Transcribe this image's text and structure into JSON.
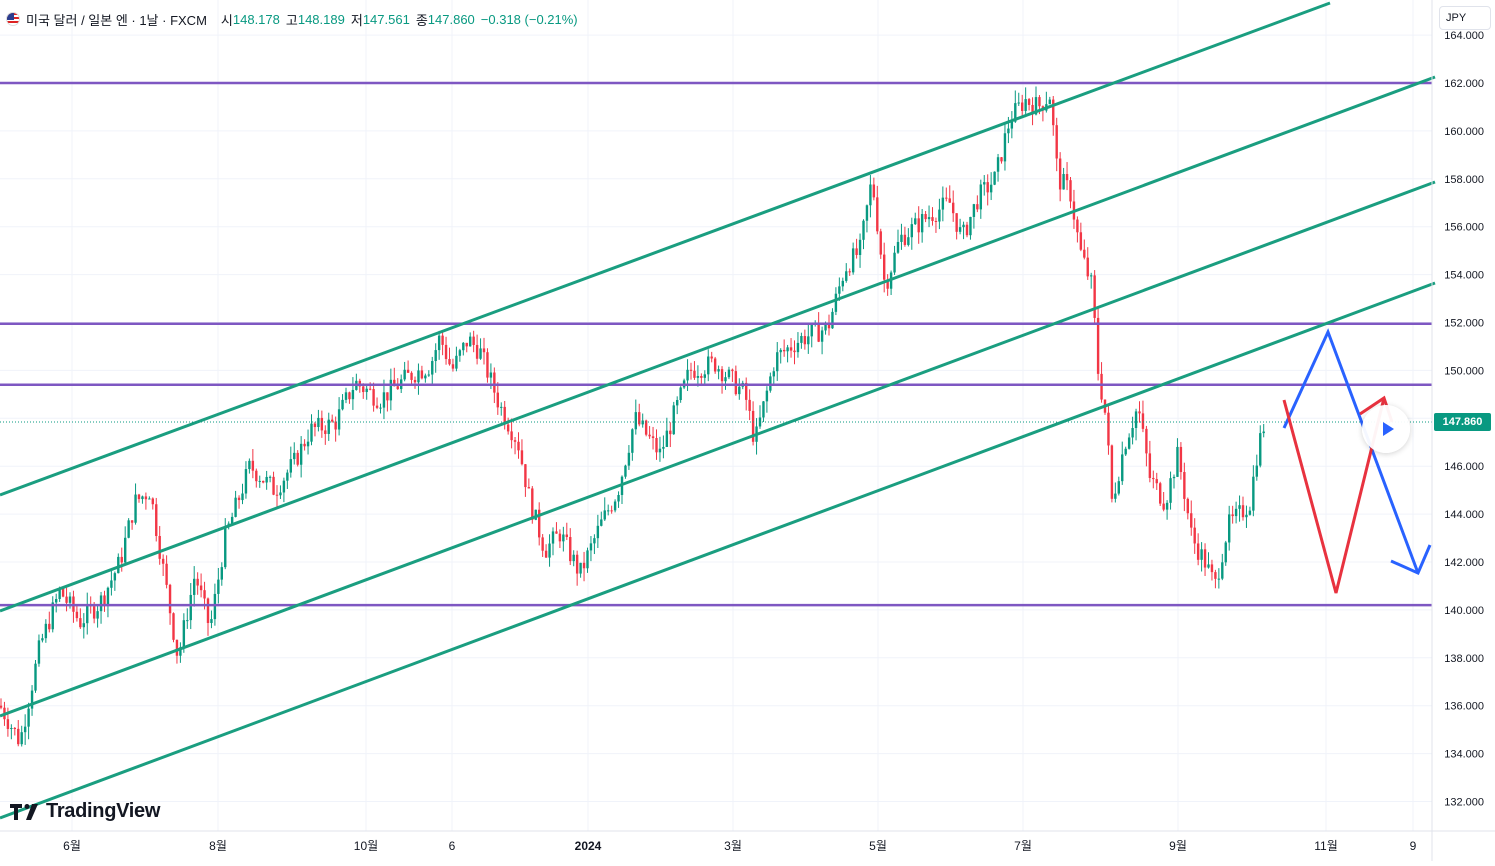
{
  "header": {
    "title": "미국 달러 / 일본 엔 · 1날 · FXCM",
    "open_label": "시",
    "open": "148.178",
    "high_label": "고",
    "high": "148.189",
    "low_label": "저",
    "low": "147.561",
    "close_label": "종",
    "close": "147.860",
    "change": "−0.318 (−0.21%)"
  },
  "currency_button": "JPY",
  "logo_text": "TradingView",
  "price_tag": "147.860",
  "colors": {
    "up": "#089981",
    "down": "#f23645",
    "channel": "#1a9e80",
    "horizontal": "#7e57c2",
    "arrow_blue": "#2962ff",
    "arrow_red": "#e8323f"
  },
  "chart_data": {
    "type": "candlestick",
    "y_ticks": [
      "164.000",
      "162.000",
      "160.000",
      "158.000",
      "156.000",
      "154.000",
      "152.000",
      "150.000",
      "148.000",
      "146.000",
      "144.000",
      "142.000",
      "140.000",
      "138.000",
      "136.000",
      "134.000",
      "132.000"
    ],
    "x_ticks": [
      "6월",
      "8월",
      "10월",
      "6",
      "2024",
      "3월",
      "5월",
      "7월",
      "9월",
      "11월",
      "9"
    ],
    "ylim": [
      131,
      165
    ],
    "last_price": 147.86,
    "horizontal_levels": [
      162.0,
      151.95,
      149.4,
      140.2
    ],
    "waypoints": [
      {
        "x": 0,
        "y": 136.0
      },
      {
        "x": 20,
        "y": 134.5
      },
      {
        "x": 40,
        "y": 138.5
      },
      {
        "x": 60,
        "y": 140.8
      },
      {
        "x": 80,
        "y": 139.5
      },
      {
        "x": 100,
        "y": 140.3
      },
      {
        "x": 120,
        "y": 142.0
      },
      {
        "x": 135,
        "y": 144.5
      },
      {
        "x": 150,
        "y": 145.0
      },
      {
        "x": 162,
        "y": 142.0
      },
      {
        "x": 178,
        "y": 138.0
      },
      {
        "x": 195,
        "y": 141.5
      },
      {
        "x": 210,
        "y": 139.2
      },
      {
        "x": 225,
        "y": 143.0
      },
      {
        "x": 250,
        "y": 146.0
      },
      {
        "x": 275,
        "y": 145.0
      },
      {
        "x": 295,
        "y": 146.2
      },
      {
        "x": 310,
        "y": 147.5
      },
      {
        "x": 335,
        "y": 147.8
      },
      {
        "x": 355,
        "y": 149.5
      },
      {
        "x": 380,
        "y": 148.8
      },
      {
        "x": 410,
        "y": 149.8
      },
      {
        "x": 430,
        "y": 150.2
      },
      {
        "x": 440,
        "y": 151.4
      },
      {
        "x": 452,
        "y": 150.0
      },
      {
        "x": 468,
        "y": 151.3
      },
      {
        "x": 480,
        "y": 150.8
      },
      {
        "x": 500,
        "y": 148.5
      },
      {
        "x": 518,
        "y": 147.0
      },
      {
        "x": 530,
        "y": 144.5
      },
      {
        "x": 545,
        "y": 142.5
      },
      {
        "x": 560,
        "y": 143.2
      },
      {
        "x": 580,
        "y": 141.5
      },
      {
        "x": 600,
        "y": 143.5
      },
      {
        "x": 618,
        "y": 145.0
      },
      {
        "x": 635,
        "y": 148.0
      },
      {
        "x": 660,
        "y": 146.5
      },
      {
        "x": 690,
        "y": 150.0
      },
      {
        "x": 715,
        "y": 150.3
      },
      {
        "x": 745,
        "y": 149.0
      },
      {
        "x": 755,
        "y": 147.0
      },
      {
        "x": 775,
        "y": 150.5
      },
      {
        "x": 800,
        "y": 151.3
      },
      {
        "x": 828,
        "y": 151.8
      },
      {
        "x": 845,
        "y": 154.3
      },
      {
        "x": 860,
        "y": 155.0
      },
      {
        "x": 872,
        "y": 158.0
      },
      {
        "x": 885,
        "y": 153.5
      },
      {
        "x": 900,
        "y": 155.5
      },
      {
        "x": 915,
        "y": 156.0
      },
      {
        "x": 930,
        "y": 156.5
      },
      {
        "x": 950,
        "y": 157.0
      },
      {
        "x": 962,
        "y": 155.5
      },
      {
        "x": 978,
        "y": 157.2
      },
      {
        "x": 995,
        "y": 158.0
      },
      {
        "x": 1010,
        "y": 160.5
      },
      {
        "x": 1025,
        "y": 161.3
      },
      {
        "x": 1038,
        "y": 161.0
      },
      {
        "x": 1050,
        "y": 161.5
      },
      {
        "x": 1058,
        "y": 158.0
      },
      {
        "x": 1070,
        "y": 157.5
      },
      {
        "x": 1080,
        "y": 155.0
      },
      {
        "x": 1092,
        "y": 153.5
      },
      {
        "x": 1098,
        "y": 150.0
      },
      {
        "x": 1106,
        "y": 148.0
      },
      {
        "x": 1112,
        "y": 144.5
      },
      {
        "x": 1125,
        "y": 147.0
      },
      {
        "x": 1138,
        "y": 148.5
      },
      {
        "x": 1150,
        "y": 145.5
      },
      {
        "x": 1165,
        "y": 144.5
      },
      {
        "x": 1178,
        "y": 146.5
      },
      {
        "x": 1192,
        "y": 143.0
      },
      {
        "x": 1205,
        "y": 142.0
      },
      {
        "x": 1215,
        "y": 141.0
      },
      {
        "x": 1228,
        "y": 143.5
      },
      {
        "x": 1240,
        "y": 144.0
      },
      {
        "x": 1250,
        "y": 144.5
      },
      {
        "x": 1258,
        "y": 146.8
      },
      {
        "x": 1265,
        "y": 147.86
      }
    ]
  }
}
